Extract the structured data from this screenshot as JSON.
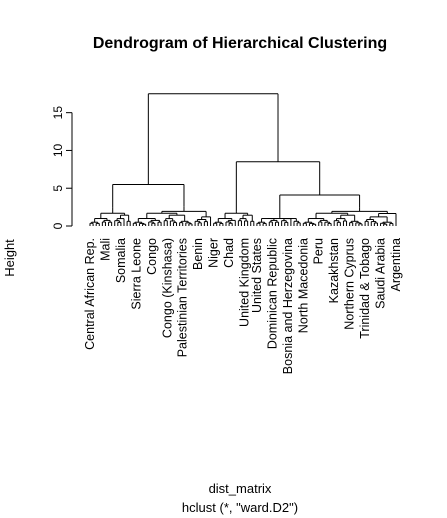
{
  "chart_data": {
    "type": "dendrogram",
    "title": "Dendrogram of Hierarchical Clustering",
    "xlabel": "dist_matrix",
    "subtitle": "hclust (*, \"ward.D2\")",
    "ylabel": "Height",
    "ylim": [
      0,
      18
    ],
    "yticks": [
      0,
      5,
      10,
      15
    ],
    "grid": false,
    "legend": "none",
    "merges": {
      "root": 17.5,
      "left": 5.5,
      "right": 8.5,
      "left_a": 2.5,
      "left_b": 2.6,
      "right_a": 1.9,
      "right_b": 4.1,
      "right_b1": 1.1,
      "right_b2": 2.4
    },
    "visible_leaf_labels": [
      "Central African Rep.",
      "Mali",
      "Somalia",
      "Sierra Leone",
      "Congo",
      "Congo (Kinshasa)",
      "Palestinian Territories",
      "Benin",
      "Niger",
      "Chad",
      "United Kingdom",
      "United States",
      "Dominican Republic",
      "Bosnia and Herzegovina",
      "North Macedonia",
      "Peru",
      "Kazakhstan",
      "Northern Cyprus",
      "Trinidad & Tobago",
      "Saudi Arabia",
      "Argentina"
    ]
  }
}
